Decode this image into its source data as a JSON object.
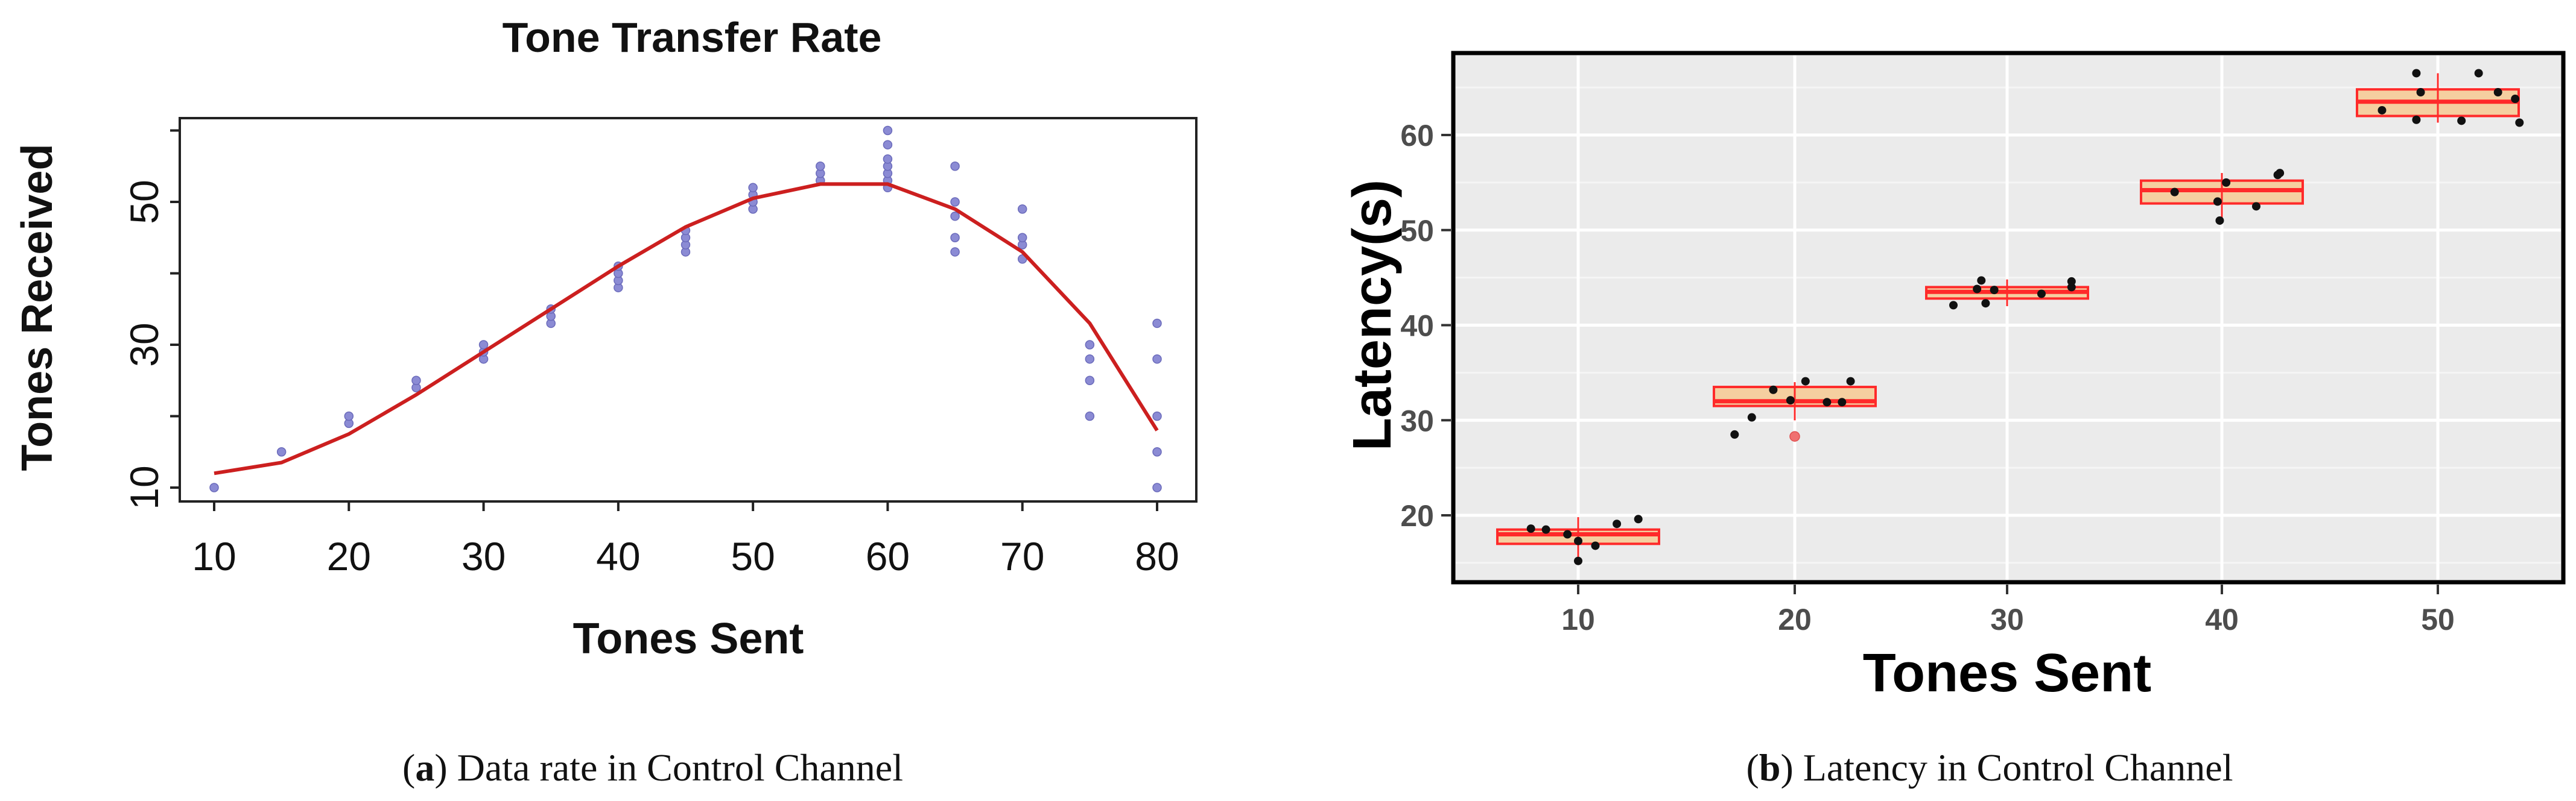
{
  "chart_data": [
    {
      "type": "scatter",
      "title": "Tone Transfer Rate",
      "xlabel": "Tones Sent",
      "ylabel": "Tones Received",
      "xlim": [
        10,
        80
      ],
      "ylim": [
        10,
        60
      ],
      "x_ticks": [
        10,
        20,
        30,
        40,
        50,
        60,
        70,
        80
      ],
      "y_ticks": [
        10,
        30,
        50
      ],
      "colors": {
        "points": "#8b8bd4",
        "line": "#cc1f1f"
      },
      "points": [
        {
          "x": 10,
          "y": 10
        },
        {
          "x": 15,
          "y": 15
        },
        {
          "x": 20,
          "y": 19
        },
        {
          "x": 20,
          "y": 20
        },
        {
          "x": 25,
          "y": 24
        },
        {
          "x": 25,
          "y": 25
        },
        {
          "x": 30,
          "y": 28
        },
        {
          "x": 30,
          "y": 29
        },
        {
          "x": 30,
          "y": 30
        },
        {
          "x": 35,
          "y": 33
        },
        {
          "x": 35,
          "y": 34
        },
        {
          "x": 35,
          "y": 35
        },
        {
          "x": 40,
          "y": 38
        },
        {
          "x": 40,
          "y": 39
        },
        {
          "x": 40,
          "y": 40
        },
        {
          "x": 40,
          "y": 41
        },
        {
          "x": 45,
          "y": 43
        },
        {
          "x": 45,
          "y": 44
        },
        {
          "x": 45,
          "y": 45
        },
        {
          "x": 45,
          "y": 46
        },
        {
          "x": 50,
          "y": 49
        },
        {
          "x": 50,
          "y": 50
        },
        {
          "x": 50,
          "y": 51
        },
        {
          "x": 50,
          "y": 52
        },
        {
          "x": 55,
          "y": 53
        },
        {
          "x": 55,
          "y": 54
        },
        {
          "x": 55,
          "y": 55
        },
        {
          "x": 60,
          "y": 52
        },
        {
          "x": 60,
          "y": 53
        },
        {
          "x": 60,
          "y": 54
        },
        {
          "x": 60,
          "y": 55
        },
        {
          "x": 60,
          "y": 56
        },
        {
          "x": 60,
          "y": 58
        },
        {
          "x": 60,
          "y": 60
        },
        {
          "x": 65,
          "y": 43
        },
        {
          "x": 65,
          "y": 45
        },
        {
          "x": 65,
          "y": 48
        },
        {
          "x": 65,
          "y": 50
        },
        {
          "x": 65,
          "y": 55
        },
        {
          "x": 70,
          "y": 42
        },
        {
          "x": 70,
          "y": 44
        },
        {
          "x": 70,
          "y": 45
        },
        {
          "x": 70,
          "y": 49
        },
        {
          "x": 75,
          "y": 20
        },
        {
          "x": 75,
          "y": 25
        },
        {
          "x": 75,
          "y": 28
        },
        {
          "x": 75,
          "y": 30
        },
        {
          "x": 80,
          "y": 10
        },
        {
          "x": 80,
          "y": 15
        },
        {
          "x": 80,
          "y": 20
        },
        {
          "x": 80,
          "y": 28
        },
        {
          "x": 80,
          "y": 33
        }
      ],
      "fit_line": {
        "x": [
          10,
          15,
          20,
          25,
          30,
          35,
          40,
          45,
          50,
          55,
          60,
          65,
          70,
          75,
          80
        ],
        "y": [
          12,
          13.5,
          17.5,
          23,
          29,
          35,
          41,
          46.5,
          50.5,
          52.5,
          52.5,
          49,
          43,
          33,
          18
        ]
      }
    },
    {
      "type": "box",
      "xlabel": "Tones Sent",
      "ylabel": "Latency(s)",
      "ylim": [
        13,
        68
      ],
      "categories": [
        "10",
        "20",
        "30",
        "40",
        "50"
      ],
      "y_ticks": [
        20,
        30,
        40,
        50,
        60
      ],
      "colors": {
        "panel": "#ebebeb",
        "box_fill": "#f5cfa0",
        "box_edge": "#ff2a2a",
        "points": "#111111",
        "outlier": "#f07070"
      },
      "boxes": [
        {
          "category": "10",
          "q1": 17.0,
          "median": 18.0,
          "q3": 18.5,
          "whisker_low": 15.0,
          "whisker_high": 19.8,
          "outliers": []
        },
        {
          "category": "20",
          "q1": 31.5,
          "median": 32.0,
          "q3": 33.5,
          "whisker_low": 30.0,
          "whisker_high": 34.0,
          "outliers": [
            28.3
          ]
        },
        {
          "category": "30",
          "q1": 42.8,
          "median": 43.5,
          "q3": 44.0,
          "whisker_low": 42.0,
          "whisker_high": 44.8,
          "outliers": []
        },
        {
          "category": "40",
          "q1": 52.8,
          "median": 54.2,
          "q3": 55.2,
          "whisker_low": 51.0,
          "whisker_high": 56.0,
          "outliers": []
        },
        {
          "category": "50",
          "q1": 62.0,
          "median": 63.5,
          "q3": 64.8,
          "whisker_low": 61.3,
          "whisker_high": 66.5,
          "outliers": []
        }
      ],
      "jitter_points": [
        {
          "x": -0.22,
          "y": 18.6
        },
        {
          "x": -0.15,
          "y": 18.5
        },
        {
          "x": -0.05,
          "y": 18.0
        },
        {
          "x": 0.0,
          "y": 17.3
        },
        {
          "x": 0.0,
          "y": 15.2
        },
        {
          "x": 0.08,
          "y": 16.8
        },
        {
          "x": 0.18,
          "y": 19.1
        },
        {
          "x": 0.28,
          "y": 19.6
        },
        {
          "x": -0.28,
          "y": 28.5
        },
        {
          "x": -0.2,
          "y": 30.3
        },
        {
          "x": -0.1,
          "y": 33.2
        },
        {
          "x": -0.02,
          "y": 32.1
        },
        {
          "x": 0.05,
          "y": 34.1
        },
        {
          "x": 0.15,
          "y": 31.9
        },
        {
          "x": 0.22,
          "y": 31.9
        },
        {
          "x": 0.26,
          "y": 34.1
        },
        {
          "x": -0.25,
          "y": 42.1
        },
        {
          "x": -0.14,
          "y": 43.8
        },
        {
          "x": -0.12,
          "y": 44.7
        },
        {
          "x": -0.1,
          "y": 42.3
        },
        {
          "x": -0.06,
          "y": 43.7
        },
        {
          "x": 0.16,
          "y": 43.3
        },
        {
          "x": 0.3,
          "y": 44.0
        },
        {
          "x": 0.3,
          "y": 44.6
        },
        {
          "x": -0.22,
          "y": 54.0
        },
        {
          "x": -0.02,
          "y": 53.0
        },
        {
          "x": -0.01,
          "y": 51.0
        },
        {
          "x": 0.02,
          "y": 55.0
        },
        {
          "x": 0.16,
          "y": 52.5
        },
        {
          "x": 0.26,
          "y": 55.8
        },
        {
          "x": 0.27,
          "y": 56.0
        },
        {
          "x": -0.26,
          "y": 62.6
        },
        {
          "x": -0.1,
          "y": 66.5
        },
        {
          "x": -0.08,
          "y": 64.5
        },
        {
          "x": -0.1,
          "y": 61.6
        },
        {
          "x": 0.11,
          "y": 61.5
        },
        {
          "x": 0.19,
          "y": 66.5
        },
        {
          "x": 0.28,
          "y": 64.5
        },
        {
          "x": 0.36,
          "y": 63.8
        },
        {
          "x": 0.38,
          "y": 61.3
        }
      ]
    }
  ],
  "captions": {
    "a": {
      "label": "a",
      "text": ") Data rate in Control Channel"
    },
    "b": {
      "label": "b",
      "text": ") Latency in Control Channel"
    }
  }
}
